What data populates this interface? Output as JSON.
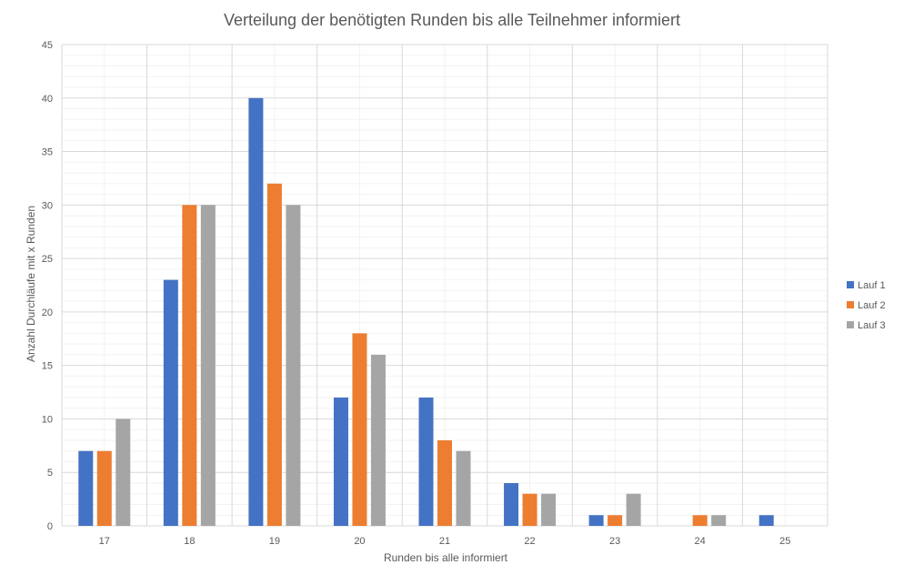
{
  "chart_data": {
    "type": "bar",
    "title": "Verteilung der benötigten Runden bis alle Teilnehmer informiert",
    "xlabel": "Runden bis alle informiert",
    "ylabel": "Anzahl Durchläufe mit x Runden",
    "categories": [
      "17",
      "18",
      "19",
      "20",
      "21",
      "22",
      "23",
      "24",
      "25"
    ],
    "ylim": [
      0,
      45
    ],
    "yticks": [
      0,
      5,
      10,
      15,
      20,
      25,
      30,
      35,
      40,
      45
    ],
    "grid": true,
    "legend_position": "right",
    "series": [
      {
        "name": "Lauf 1",
        "color": "#4472C4",
        "values": [
          7,
          23,
          40,
          12,
          12,
          4,
          1,
          0,
          1
        ]
      },
      {
        "name": "Lauf 2",
        "color": "#ED7D31",
        "values": [
          7,
          30,
          32,
          18,
          8,
          3,
          1,
          1,
          0
        ]
      },
      {
        "name": "Lauf 3",
        "color": "#A5A5A5",
        "values": [
          10,
          30,
          30,
          16,
          7,
          3,
          3,
          1,
          0
        ]
      }
    ]
  }
}
